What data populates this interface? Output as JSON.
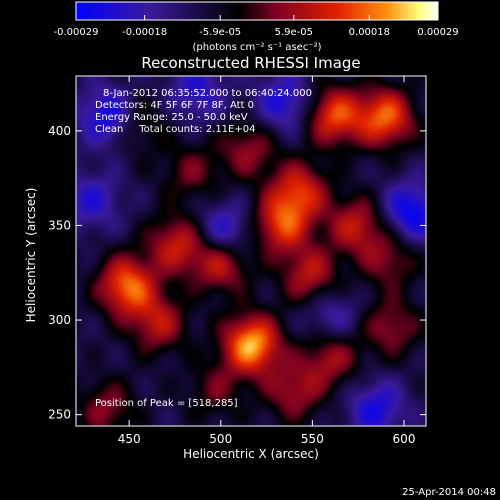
{
  "chart_data": {
    "type": "heatmap",
    "title": "Reconstructed RHESSI Image",
    "xlabel": "Heliocentric X (arcsec)",
    "ylabel": "Heliocentric Y (arcsec)",
    "xlim": [
      421,
      612
    ],
    "ylim": [
      244,
      429
    ],
    "x_ticks": [
      450,
      500,
      550,
      600
    ],
    "y_ticks": [
      250,
      300,
      350,
      400
    ],
    "x_tick_labels": [
      "450",
      "500",
      "550",
      "600"
    ],
    "y_tick_labels": [
      "250",
      "300",
      "350",
      "400"
    ],
    "colorbar": {
      "range": [
        -0.00029,
        0.00029
      ],
      "tick_labels": [
        "-0.00029",
        "-0.00018",
        "-5.9e-05",
        "5.9e-05",
        "0.00018",
        "0.00029"
      ],
      "unit_label": "(photons cm⁻² s⁻¹ asec⁻²)",
      "colors": [
        "#0000ff",
        "#3a1aa0",
        "#000000",
        "#7a0020",
        "#e02000",
        "#ff9010",
        "#ffff80",
        "#ffffff"
      ]
    },
    "annotations": {
      "time_range": "8-Jan-2012 06:35:52.000 to 06:40:24.000",
      "detectors": "Detectors: 4F 5F 6F 7F 8F, Att 0",
      "energy": "Energy Range: 25.0 - 50.0 keV",
      "clean": "Clean     Total counts: 2.11E+04",
      "peak": "Position of Peak = [518,285]"
    },
    "blobs": [
      {
        "x": 517,
        "y": 287,
        "value": 0.00029
      },
      {
        "x": 449,
        "y": 318,
        "value": 0.00024
      },
      {
        "x": 590,
        "y": 407,
        "value": 0.00023
      },
      {
        "x": 562,
        "y": 408,
        "value": 0.00021
      },
      {
        "x": 533,
        "y": 350,
        "value": 0.00019
      },
      {
        "x": 543,
        "y": 368,
        "value": 0.00018
      },
      {
        "x": 500,
        "y": 330,
        "value": 0.00017
      },
      {
        "x": 476,
        "y": 340,
        "value": 0.00016
      },
      {
        "x": 549,
        "y": 323,
        "value": 0.00015
      },
      {
        "x": 574,
        "y": 350,
        "value": 0.00015
      },
      {
        "x": 466,
        "y": 298,
        "value": 0.00014
      },
      {
        "x": 560,
        "y": 280,
        "value": 0.00013
      },
      {
        "x": 540,
        "y": 262,
        "value": 0.00012
      },
      {
        "x": 593,
        "y": 296,
        "value": 0.00011
      },
      {
        "x": 515,
        "y": 390,
        "value": 0.00011
      },
      {
        "x": 438,
        "y": 253,
        "value": 0.0001
      },
      {
        "x": 592,
        "y": 332,
        "value": 0.0001
      },
      {
        "x": 484,
        "y": 378,
        "value": 8e-05
      },
      {
        "x": 456,
        "y": 403,
        "value": 6e-05
      },
      {
        "x": 497,
        "y": 263,
        "value": 7e-05
      },
      {
        "x": 487,
        "y": 421,
        "value": -0.00016
      },
      {
        "x": 438,
        "y": 408,
        "value": -0.0002
      },
      {
        "x": 535,
        "y": 415,
        "value": -0.00018
      },
      {
        "x": 502,
        "y": 346,
        "value": -0.00019
      },
      {
        "x": 604,
        "y": 357,
        "value": -0.00022
      },
      {
        "x": 585,
        "y": 253,
        "value": -0.00018
      },
      {
        "x": 430,
        "y": 363,
        "value": -0.00015
      },
      {
        "x": 560,
        "y": 302,
        "value": -0.00014
      }
    ],
    "background_value": -9e-05
  },
  "footer": {
    "date": "25-Apr-2014 00:48"
  }
}
